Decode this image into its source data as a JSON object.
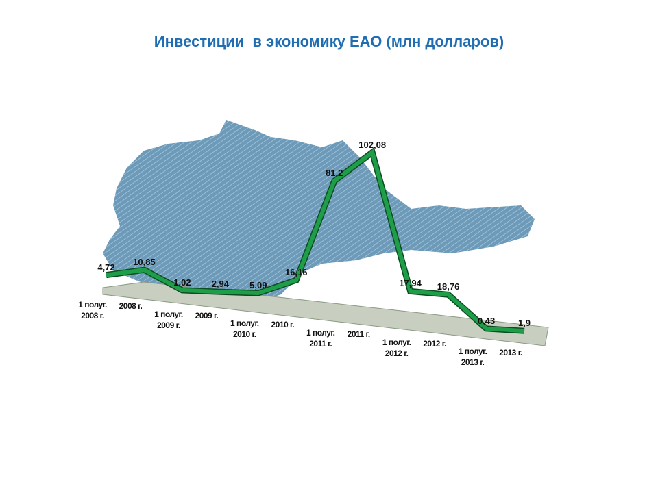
{
  "chart_data": {
    "type": "line",
    "title": "Инвестиции  в экономику ЕАО (млн долларов)",
    "categories": [
      "1 полуг.\n2008 г.",
      "2008 г.",
      "1 полуг.\n2009 г.",
      "2009 г.",
      "1 полуг.\n2010 г.",
      "2010 г.",
      "1 полуг.\n2011 г.",
      "2011 г.",
      "1 полуг.\n2012 г.",
      "2012 г.",
      "1 полуг.\n2013 г.",
      "2013 г."
    ],
    "series": [
      {
        "name": "Инвестиции",
        "color": "#1e9e48",
        "values": [
          4.72,
          10.85,
          1.02,
          2.94,
          5.09,
          16.16,
          81.2,
          102.08,
          17.94,
          18.76,
          0.43,
          1.9
        ],
        "value_labels": [
          "4,72",
          "10,85",
          "1,02",
          "2,94",
          "5,09",
          "16,16",
          "81,2",
          "102,08",
          "17,94",
          "18,76",
          "0,43",
          "1,9"
        ]
      }
    ]
  }
}
